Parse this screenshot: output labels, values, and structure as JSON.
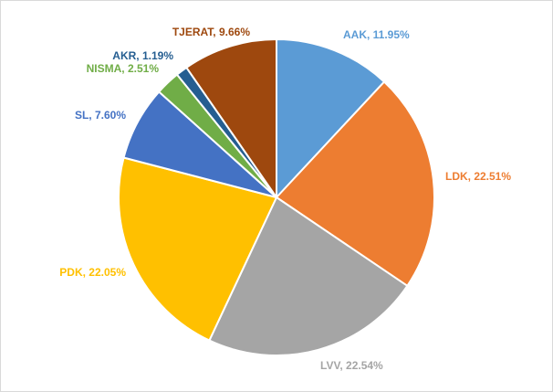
{
  "chart_data": {
    "type": "pie",
    "start_angle_deg": 0,
    "direction": "clockwise",
    "slices": [
      {
        "name": "AAK",
        "value": 11.95,
        "label": "AAK, 11.95%",
        "color": "#5b9bd5"
      },
      {
        "name": "LDK",
        "value": 22.51,
        "label": "LDK, 22.51%",
        "color": "#ed7d31"
      },
      {
        "name": "LVV",
        "value": 22.54,
        "label": "LVV, 22.54%",
        "color": "#a5a5a5"
      },
      {
        "name": "PDK",
        "value": 22.05,
        "label": "PDK, 22.05%",
        "color": "#ffc000"
      },
      {
        "name": "SL",
        "value": 7.6,
        "label": "SL, 7.60%",
        "color": "#4472c4"
      },
      {
        "name": "NISMA",
        "value": 2.51,
        "label": "NISMA, 2.51%",
        "color": "#70ad47"
      },
      {
        "name": "AKR",
        "value": 1.19,
        "label": "AKR, 1.19%",
        "color": "#255e91"
      },
      {
        "name": "TJERAT",
        "value": 9.66,
        "label": "TJERAT, 9.66%",
        "color": "#9e480e"
      }
    ]
  }
}
